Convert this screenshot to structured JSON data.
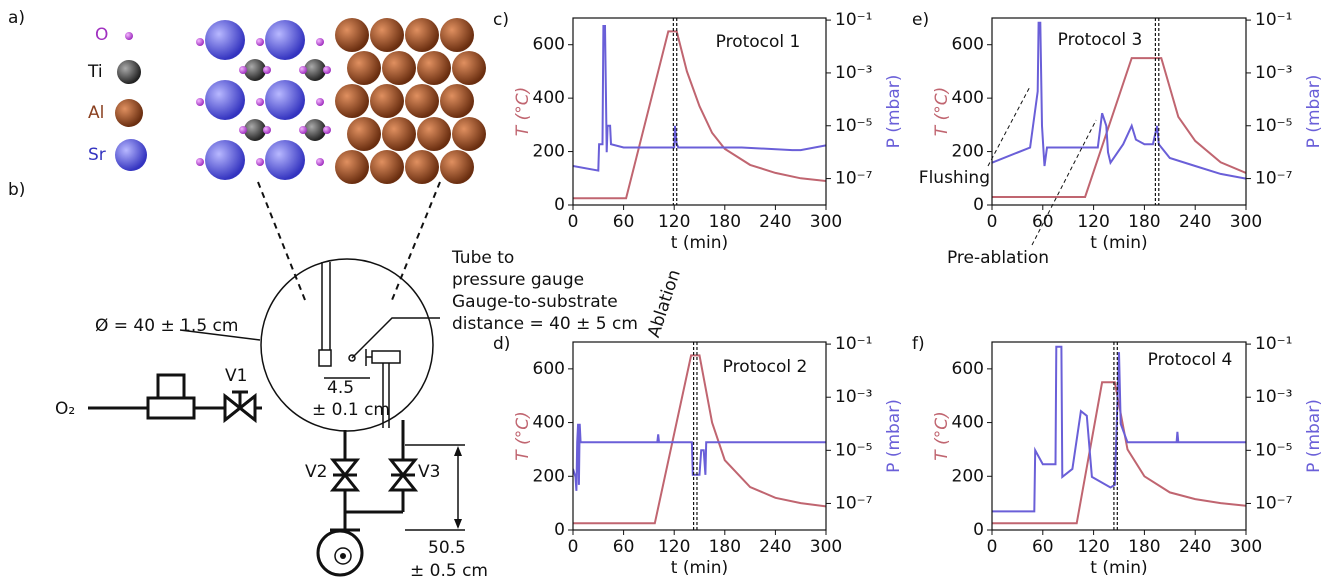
{
  "diagram": {
    "panel_a": "a)",
    "panel_b": "b)",
    "legend": [
      "O",
      "Ti",
      "Al",
      "Sr"
    ],
    "gauge_note": [
      "Tube to",
      "pressure gauge",
      "Gauge-to-substrate",
      "distance = 40 ± 5 cm"
    ],
    "diameter": "Ø = 40 ± 1.5 cm",
    "oxygen": "O₂",
    "valves": [
      "V1",
      "V2",
      "V3"
    ],
    "gap": [
      "4.5",
      "± 0.1 cm"
    ],
    "height": [
      "50.5",
      "± 0.5 cm"
    ]
  },
  "chart_data": [
    {
      "type": "line",
      "panel": "c)",
      "annotation": "Protocol 1",
      "xlabel": "t (min)",
      "ylabel": "T (°C)",
      "y2label": "P (mbar)",
      "xlim": [
        0,
        300
      ],
      "xticks": [
        0,
        60,
        120,
        180,
        240,
        300
      ],
      "ylim": [
        0,
        700
      ],
      "yticks": [
        0,
        200,
        400,
        600
      ],
      "y2lim": [
        1e-08,
        0.12
      ],
      "y2scale": "log",
      "y2ticks": [
        {
          "value": 1e-07,
          "label": "10⁻⁷"
        },
        {
          "value": 1e-05,
          "label": "10⁻⁵"
        },
        {
          "value": 0.001,
          "label": "10⁻³"
        },
        {
          "value": 0.1,
          "label": "10⁻¹"
        }
      ],
      "vlines": [
        119,
        123
      ],
      "series": [
        {
          "color": "#c06570",
          "x": [
            0,
            63,
            113,
            123,
            135,
            150,
            165,
            180,
            210,
            240,
            270,
            300
          ],
          "values": [
            25,
            25,
            650,
            650,
            500,
            370,
            270,
            210,
            150,
            120,
            100,
            90
          ]
        },
        {
          "color": "#6a5fd8",
          "axis": "y2",
          "x": [
            0,
            30,
            31,
            35,
            36,
            38,
            39,
            40,
            41,
            44,
            45,
            60,
            120,
            121,
            123,
            125,
            200,
            260,
            270,
            300
          ],
          "values": [
            3e-07,
            2e-07,
            2e-06,
            2e-06,
            0.06,
            0.06,
            0.0002,
            1e-06,
            1e-05,
            1e-05,
            2e-06,
            1.5e-06,
            1.5e-06,
            1e-05,
            2e-06,
            1.5e-06,
            1.5e-06,
            1.2e-06,
            1.2e-06,
            1.8e-06
          ]
        }
      ]
    },
    {
      "type": "line",
      "panel": "d)",
      "annotation": "Protocol 2",
      "extra_label": "Ablation",
      "xlabel": "t (min)",
      "ylabel": "T (°C)",
      "y2label": "P (mbar)",
      "xlim": [
        0,
        300
      ],
      "xticks": [
        0,
        60,
        120,
        180,
        240,
        300
      ],
      "ylim": [
        0,
        700
      ],
      "yticks": [
        0,
        200,
        400,
        600
      ],
      "y2lim": [
        1e-08,
        0.12
      ],
      "y2scale": "log",
      "y2ticks": [
        {
          "value": 1e-07,
          "label": "10⁻⁷"
        },
        {
          "value": 1e-05,
          "label": "10⁻⁵"
        },
        {
          "value": 0.001,
          "label": "10⁻³"
        },
        {
          "value": 0.1,
          "label": "10⁻¹"
        }
      ],
      "vlines": [
        143,
        147
      ],
      "series": [
        {
          "color": "#c06570",
          "x": [
            0,
            97,
            140,
            150,
            165,
            180,
            210,
            240,
            270,
            300
          ],
          "values": [
            25,
            25,
            650,
            650,
            400,
            260,
            160,
            120,
            100,
            88
          ]
        },
        {
          "color": "#6a5fd8",
          "axis": "y2",
          "x": [
            0,
            3,
            4,
            5,
            6,
            7,
            8,
            9,
            12,
            100,
            101,
            102,
            141,
            142,
            150,
            152,
            155,
            157,
            158,
            300
          ],
          "values": [
            2e-06,
            1e-06,
            3e-07,
            2e-05,
            0.0001,
            5e-07,
            0.0001,
            2e-05,
            2e-05,
            2e-05,
            4e-05,
            2e-05,
            2e-05,
            1.2e-06,
            1.2e-06,
            1e-05,
            1e-05,
            1.2e-06,
            2e-05,
            2e-05
          ]
        }
      ]
    },
    {
      "type": "line",
      "panel": "e)",
      "annotation": "Protocol 3",
      "labels": [
        "Flushing",
        "Pre-ablation"
      ],
      "xlabel": "t (min)",
      "ylabel": "T (°C)",
      "y2label": "P (mbar)",
      "xlim": [
        0,
        300
      ],
      "xticks": [
        0,
        60,
        120,
        180,
        240,
        300
      ],
      "ylim": [
        0,
        700
      ],
      "yticks": [
        0,
        200,
        400,
        600
      ],
      "y2lim": [
        1e-08,
        0.12
      ],
      "y2scale": "log",
      "y2ticks": [
        {
          "value": 1e-07,
          "label": "10⁻⁷"
        },
        {
          "value": 1e-05,
          "label": "10⁻⁵"
        },
        {
          "value": 0.001,
          "label": "10⁻³"
        },
        {
          "value": 0.1,
          "label": "10⁻¹"
        }
      ],
      "vlines": [
        193,
        197
      ],
      "series": [
        {
          "color": "#c06570",
          "x": [
            0,
            110,
            165,
            200,
            220,
            240,
            270,
            300
          ],
          "values": [
            30,
            30,
            550,
            550,
            330,
            240,
            160,
            120
          ]
        },
        {
          "color": "#6a5fd8",
          "axis": "y2",
          "x": [
            0,
            45,
            54,
            55,
            57,
            59,
            61,
            62,
            65,
            100,
            125,
            130,
            135,
            137,
            140,
            155,
            165,
            170,
            180,
            190,
            195,
            197,
            210,
            240,
            270,
            300
          ],
          "values": [
            4e-07,
            1.5e-06,
            0.0002,
            0.08,
            0.08,
            1e-05,
            1e-06,
            3e-07,
            1.5e-06,
            1.5e-06,
            1.5e-06,
            3e-05,
            1e-05,
            1e-06,
            4e-07,
            2e-06,
            1e-05,
            3e-06,
            2e-06,
            2e-06,
            1e-05,
            2e-06,
            6e-07,
            3e-07,
            1.5e-07,
            1e-07
          ]
        }
      ]
    },
    {
      "type": "line",
      "panel": "f)",
      "annotation": "Protocol 4",
      "xlabel": "t (min)",
      "ylabel": "T (°C)",
      "y2label": "P (mbar)",
      "xlim": [
        0,
        300
      ],
      "xticks": [
        0,
        60,
        120,
        180,
        240,
        300
      ],
      "ylim": [
        0,
        700
      ],
      "yticks": [
        0,
        200,
        400,
        600
      ],
      "y2lim": [
        1e-08,
        0.12
      ],
      "y2scale": "log",
      "y2ticks": [
        {
          "value": 1e-07,
          "label": "10⁻⁷"
        },
        {
          "value": 1e-05,
          "label": "10⁻⁵"
        },
        {
          "value": 0.001,
          "label": "10⁻³"
        },
        {
          "value": 0.1,
          "label": "10⁻¹"
        }
      ],
      "vlines": [
        144,
        148
      ],
      "series": [
        {
          "color": "#c06570",
          "x": [
            0,
            100,
            130,
            145,
            160,
            180,
            210,
            240,
            270,
            300
          ],
          "values": [
            25,
            25,
            550,
            550,
            300,
            200,
            140,
            115,
            100,
            90
          ]
        },
        {
          "color": "#6a5fd8",
          "axis": "y2",
          "x": [
            0,
            50,
            51,
            60,
            75,
            76,
            82,
            83,
            95,
            105,
            112,
            118,
            140,
            145,
            150,
            152,
            160,
            218,
            219,
            220,
            300
          ],
          "values": [
            5e-08,
            5e-08,
            1e-05,
            3e-06,
            3e-06,
            0.08,
            0.08,
            1e-06,
            2e-06,
            0.0003,
            0.0002,
            1e-06,
            4e-07,
            5e-07,
            0.05,
            0.0001,
            2e-05,
            2e-05,
            5e-05,
            2e-05,
            2e-05
          ]
        }
      ]
    }
  ]
}
